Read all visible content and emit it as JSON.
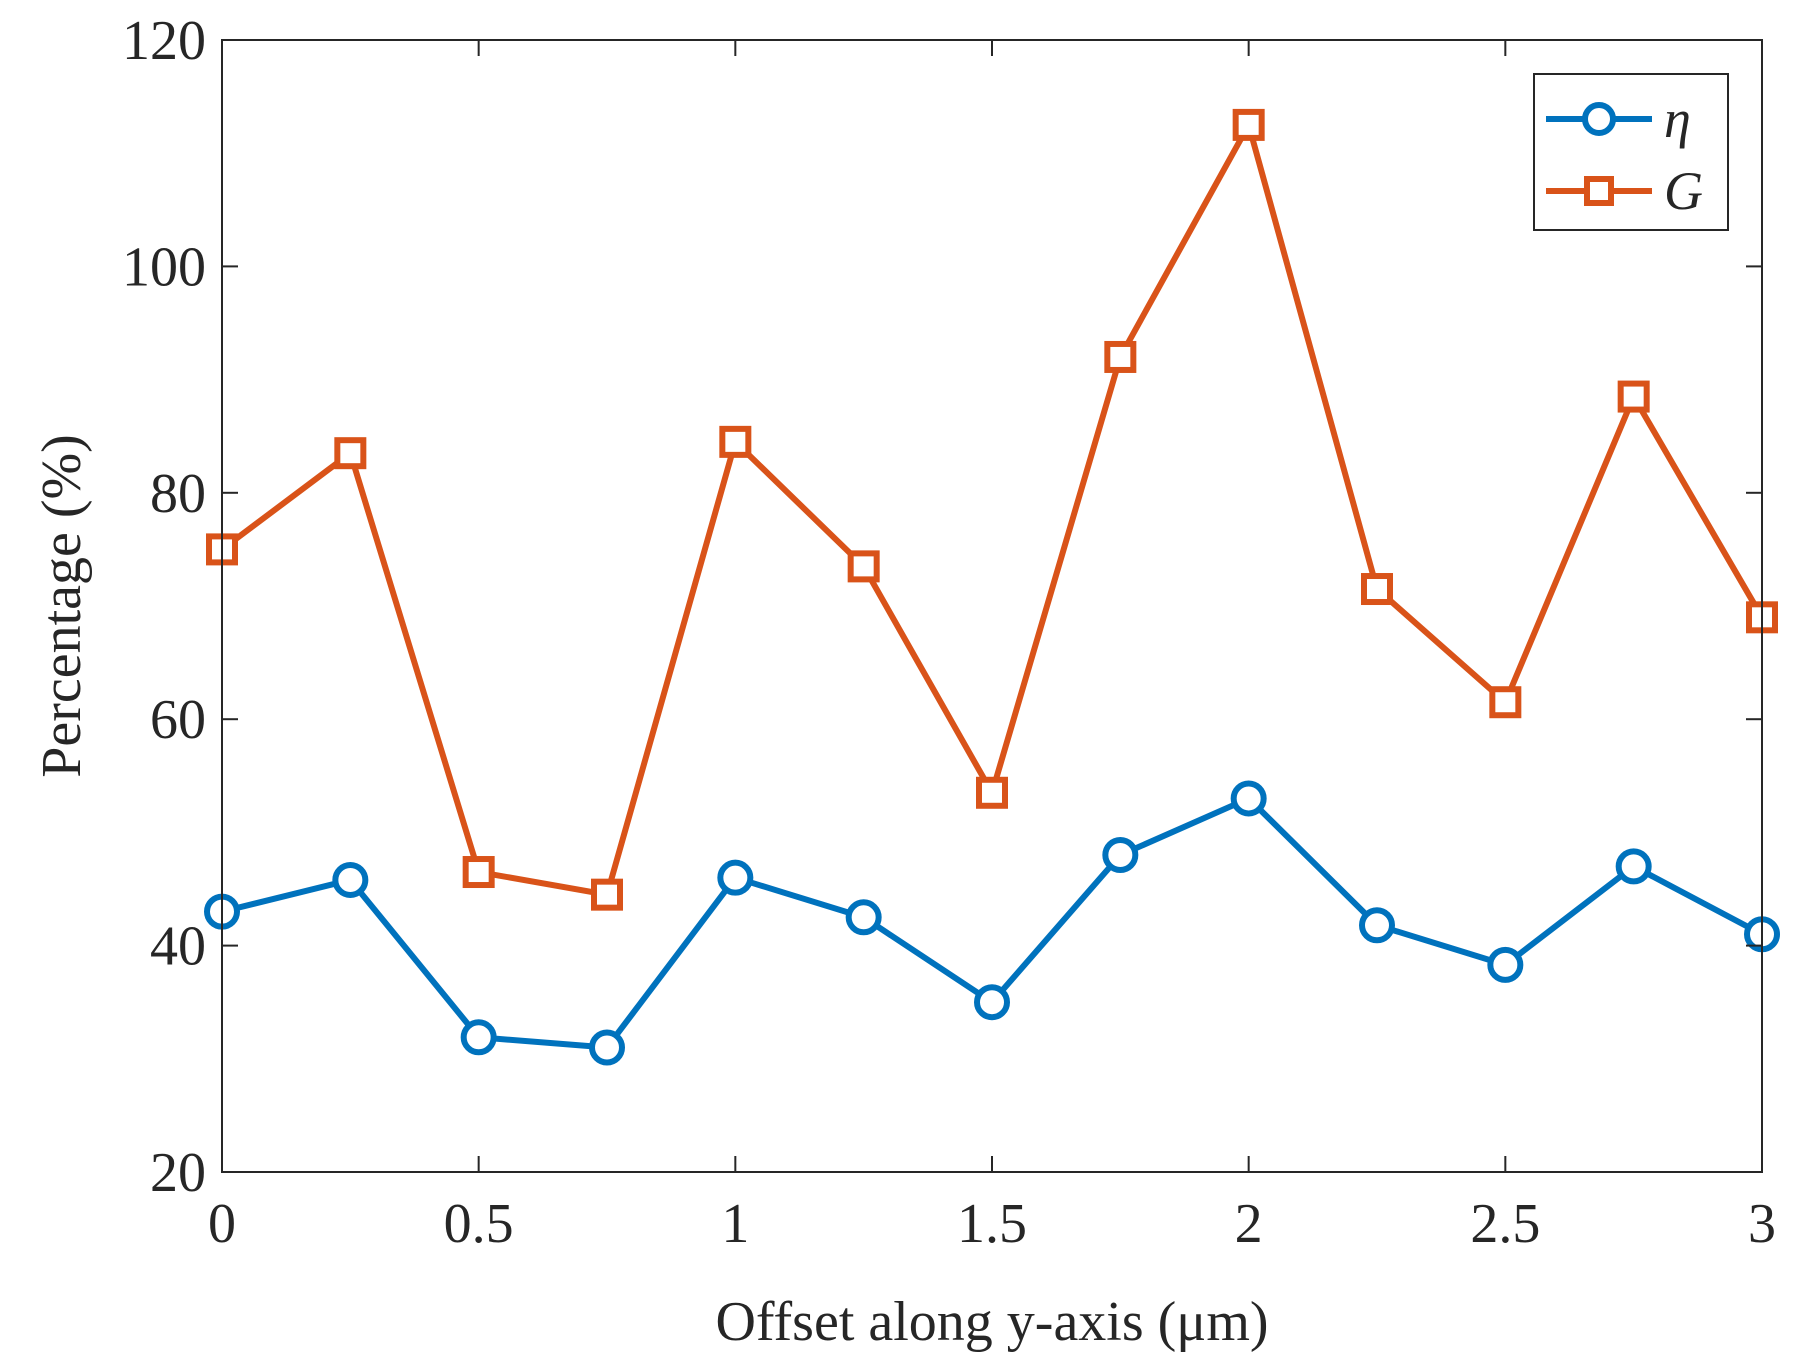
{
  "chart_data": {
    "type": "line",
    "title": "",
    "xlabel": "Offset along y-axis (μm)",
    "ylabel": "Percentage (%)",
    "xlim": [
      0,
      3
    ],
    "ylim": [
      20,
      120
    ],
    "xticks": [
      0,
      0.5,
      1,
      1.5,
      2,
      2.5,
      3
    ],
    "xtick_labels": [
      "0",
      "0.5",
      "1",
      "1.5",
      "2",
      "2.5",
      "3"
    ],
    "yticks": [
      20,
      40,
      60,
      80,
      100,
      120
    ],
    "ytick_labels": [
      "20",
      "40",
      "60",
      "80",
      "100",
      "120"
    ],
    "grid": false,
    "legend_position": "top-right",
    "x": [
      0,
      0.25,
      0.5,
      0.75,
      1,
      1.25,
      1.5,
      1.75,
      2,
      2.25,
      2.5,
      2.75,
      3
    ],
    "series": [
      {
        "name": "η",
        "color": "#0072BD",
        "marker": "circle",
        "values": [
          43.0,
          45.8,
          31.9,
          31.0,
          46.0,
          42.5,
          35.0,
          48.0,
          53.0,
          41.8,
          38.3,
          47.0,
          41.0
        ]
      },
      {
        "name": "G",
        "color": "#D95319",
        "marker": "square",
        "values": [
          75.0,
          83.5,
          46.5,
          44.5,
          84.5,
          73.5,
          53.5,
          92.0,
          112.5,
          71.5,
          61.5,
          88.5,
          69.0
        ]
      }
    ]
  }
}
